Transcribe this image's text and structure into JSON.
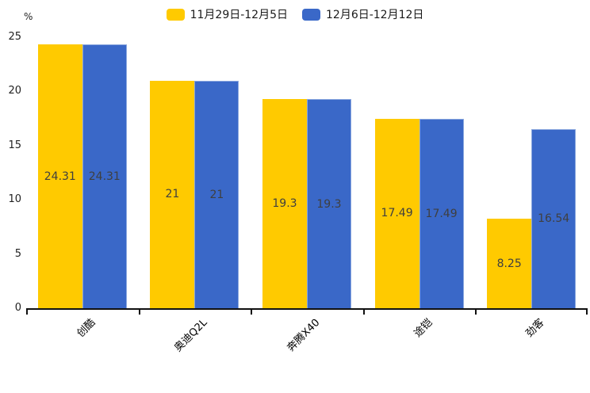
{
  "chart_data": {
    "type": "bar",
    "title": "",
    "ylabel": "%",
    "xlabel": "",
    "categories": [
      "创酷",
      "奥迪Q2L",
      "奔腾X40",
      "途铠",
      "劲客"
    ],
    "series": [
      {
        "name": "11月29日-12月5日",
        "color": "#FFCA00",
        "values": [
          24.31,
          21,
          19.3,
          17.49,
          8.25
        ]
      },
      {
        "name": "12月6日-12月12日",
        "color": "#3A68C8",
        "values": [
          24.31,
          21,
          19.3,
          17.49,
          16.54
        ]
      }
    ],
    "value_labels": [
      [
        "24.31",
        "21",
        "19.3",
        "17.49",
        "8.25"
      ],
      [
        "24.31",
        "21",
        "19.3",
        "17.49",
        "16.54"
      ]
    ],
    "ylim": [
      0,
      25
    ],
    "yticks": [
      0,
      5,
      10,
      15,
      20,
      25
    ],
    "grid": false,
    "legend_position": "top",
    "axis_color": "#111111",
    "value_label_color": "#3f3f3f"
  }
}
